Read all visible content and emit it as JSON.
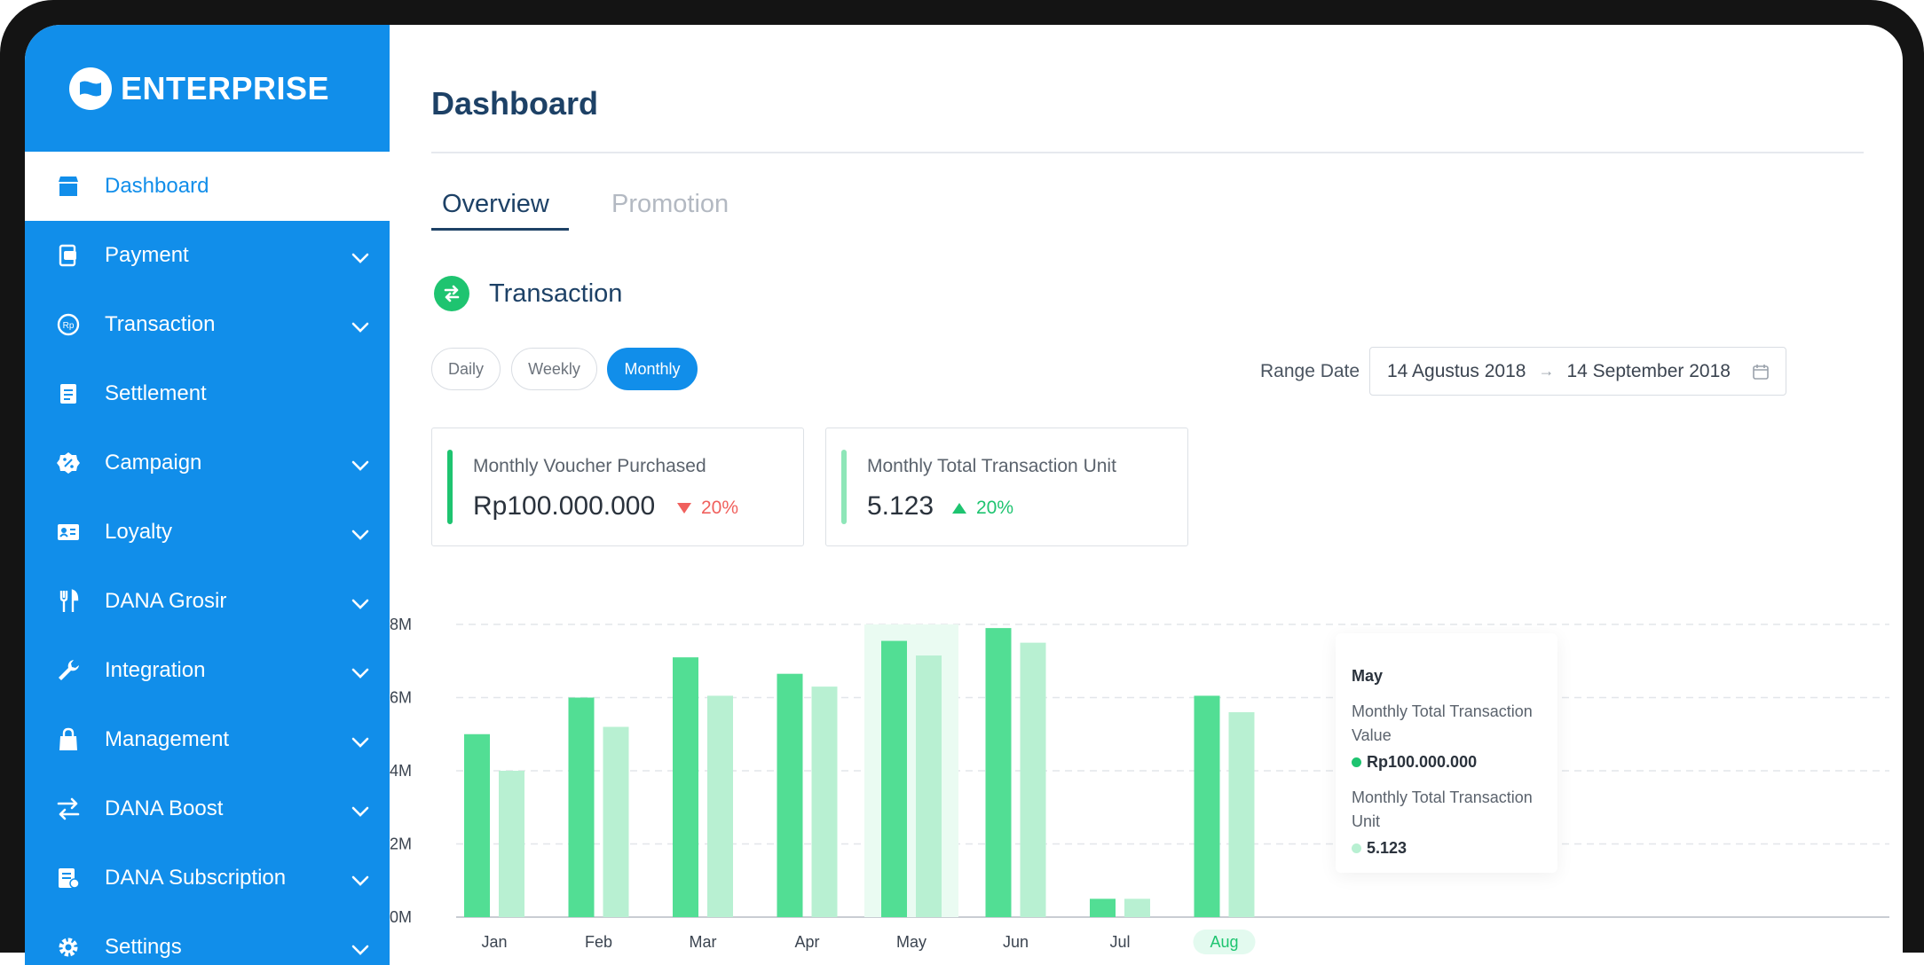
{
  "brand": {
    "name": "ENTERPRISE"
  },
  "sidebar": {
    "items": [
      {
        "label": "Dashboard",
        "icon": "store-icon",
        "active": true,
        "has_chevron": false
      },
      {
        "label": "Payment",
        "icon": "payment-icon",
        "active": false,
        "has_chevron": true
      },
      {
        "label": "Transaction",
        "icon": "rupiah-coin-icon",
        "active": false,
        "has_chevron": true
      },
      {
        "label": "Settlement",
        "icon": "document-icon",
        "active": false,
        "has_chevron": false
      },
      {
        "label": "Campaign",
        "icon": "percent-badge-icon",
        "active": false,
        "has_chevron": true
      },
      {
        "label": "Loyalty",
        "icon": "id-card-icon",
        "active": false,
        "has_chevron": true
      },
      {
        "label": "DANA Grosir",
        "icon": "utensils-icon",
        "active": false,
        "has_chevron": true
      },
      {
        "label": "Integration",
        "icon": "wrench-icon",
        "active": false,
        "has_chevron": true
      },
      {
        "label": "Management",
        "icon": "bag-icon",
        "active": false,
        "has_chevron": true
      },
      {
        "label": "DANA Boost",
        "icon": "swap-icon",
        "active": false,
        "has_chevron": true
      },
      {
        "label": "DANA Subscription",
        "icon": "subscription-icon",
        "active": false,
        "has_chevron": true
      },
      {
        "label": "Settings",
        "icon": "gear-icon",
        "active": false,
        "has_chevron": true
      }
    ]
  },
  "header": {
    "title": "Dashboard"
  },
  "tabs": [
    {
      "label": "Overview",
      "active": true
    },
    {
      "label": "Promotion",
      "active": false
    }
  ],
  "section": {
    "title": "Transaction"
  },
  "period": {
    "options": [
      {
        "label": "Daily",
        "active": false
      },
      {
        "label": "Weekly",
        "active": false
      },
      {
        "label": "Monthly",
        "active": true
      }
    ]
  },
  "range": {
    "label": "Range Date",
    "start": "14 Agustus 2018",
    "end": "14 September 2018"
  },
  "cards": [
    {
      "label": "Monthly Voucher Purchased",
      "value": "Rp100.000.000",
      "change": "20%",
      "direction": "down",
      "accent": "#1ec470",
      "change_color": "#f0605d"
    },
    {
      "label": "Monthly Total Transaction Unit",
      "value": "5.123",
      "change": "20%",
      "direction": "up",
      "accent": "#8ee6b8",
      "change_color": "#1ec470"
    }
  ],
  "colors": {
    "primary": "#118eea",
    "value_bar": "#52de94",
    "unit_bar": "#b8f0d2",
    "navy": "#1d4166"
  },
  "tooltip": {
    "month": "May",
    "value_label": "Monthly Total Transaction Value",
    "value": "Rp100.000.000",
    "unit_label": "Monthly Total Transaction Unit",
    "unit": "5.123"
  },
  "chart_data": {
    "type": "bar",
    "categories": [
      "Jan",
      "Feb",
      "Mar",
      "Apr",
      "May",
      "Jun",
      "Jul",
      "Aug"
    ],
    "series": [
      {
        "values": [
          5.0,
          6.0,
          7.1,
          6.65,
          7.55,
          7.9,
          0.5,
          6.05
        ]
      },
      {
        "values": [
          4.0,
          5.2,
          6.05,
          6.3,
          7.15,
          7.5,
          0.5,
          5.6
        ]
      }
    ],
    "y_ticks": [
      "0M",
      "2M",
      "4M",
      "6M",
      "8M"
    ],
    "ylim": [
      0,
      8
    ],
    "highlighted": "May",
    "selected": "Aug",
    "grid": true
  }
}
